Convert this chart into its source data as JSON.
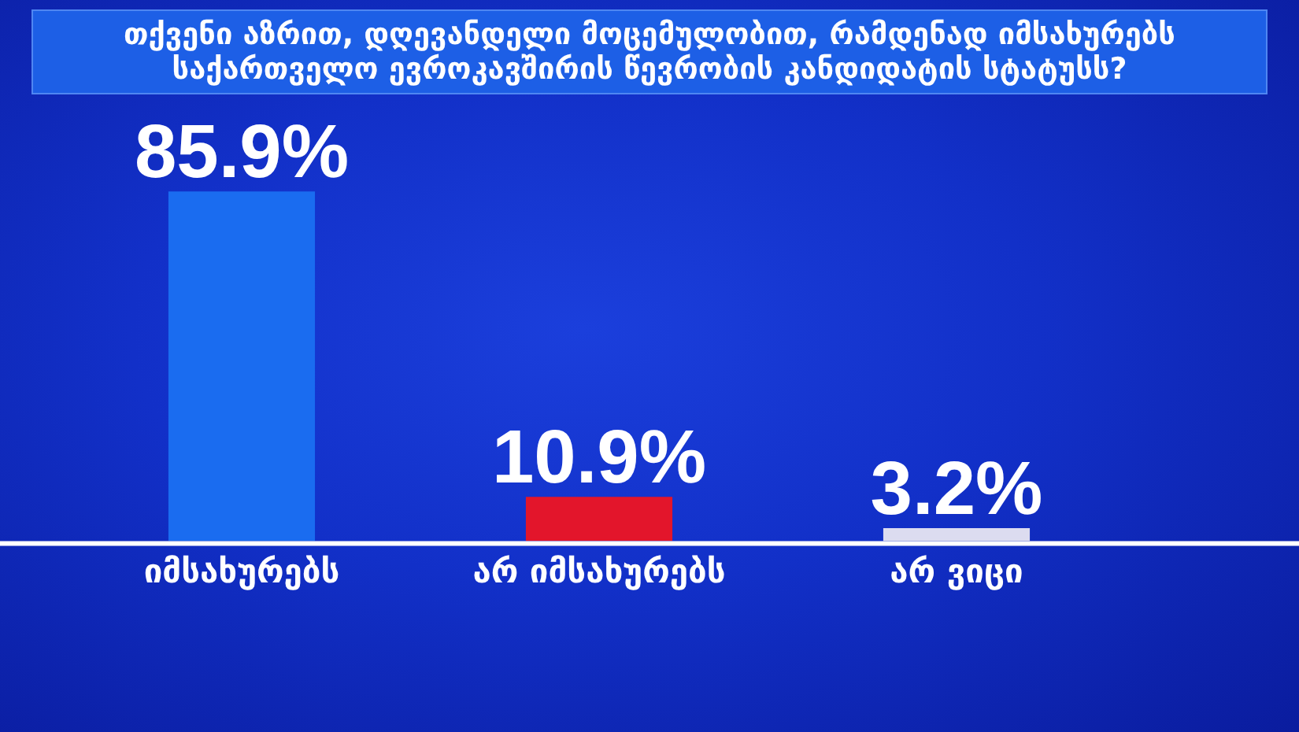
{
  "chart_data": {
    "type": "bar",
    "title": "თქვენი აზრით, დღევანდელი მოცემულობით, რამდენად იმსახურებს საქართველო ევროკავშირის წევრობის კანდიდატის სტატუსს?",
    "categories": [
      "იმსახურებს",
      "არ იმსახურებს",
      "არ ვიცი"
    ],
    "values": [
      85.9,
      10.9,
      3.2
    ],
    "colors": [
      "#1a6cf0",
      "#e3152b",
      "#dcdcf0"
    ],
    "value_labels": [
      "85.9%",
      "10.9%",
      "3.2%"
    ],
    "tick_labels": "x"
  }
}
